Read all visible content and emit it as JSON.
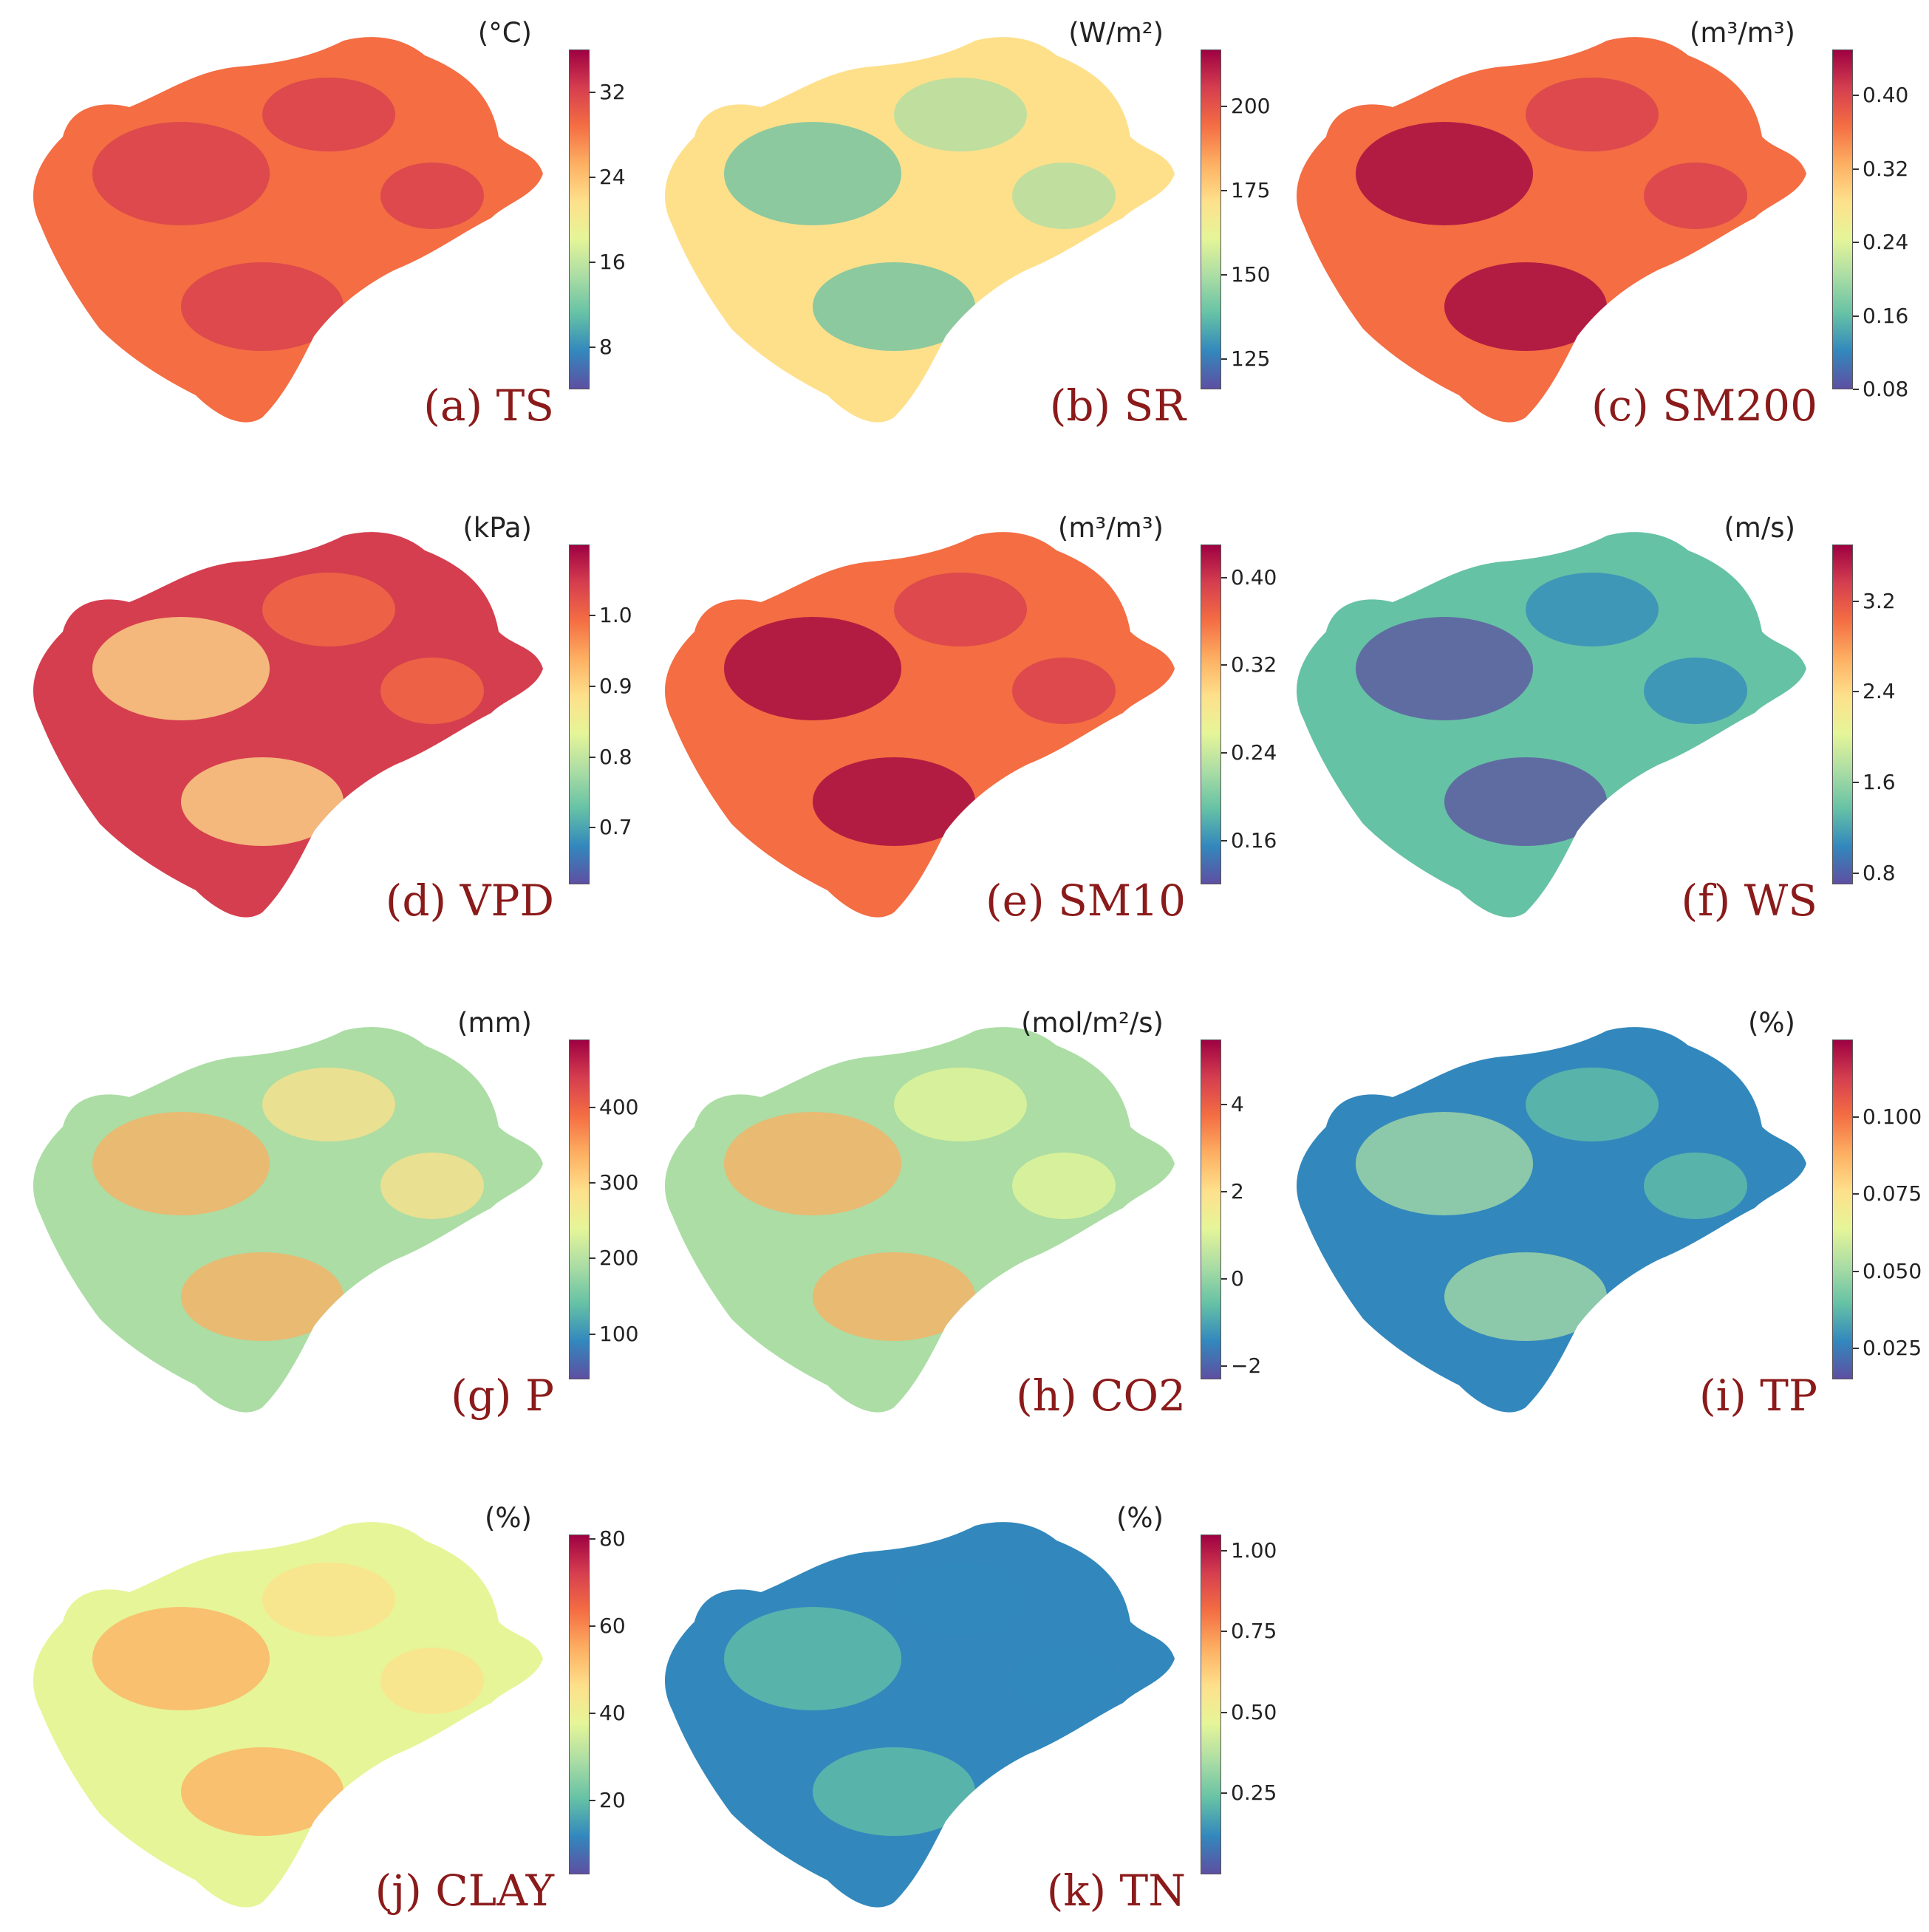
{
  "figure": {
    "colormap": [
      "#5e4fa2",
      "#3288bd",
      "#66c2a5",
      "#abdda4",
      "#e6f598",
      "#fee08b",
      "#fdae61",
      "#f46d43",
      "#d53e4f",
      "#9e0142"
    ],
    "panels": [
      {
        "id": "a",
        "label": "(a) TS",
        "unit": "(°C)",
        "ticks": [
          "8",
          "16",
          "24",
          "32"
        ],
        "tick_values": [
          8,
          16,
          24,
          32
        ],
        "range": [
          4,
          36
        ],
        "fill_level": 0.78,
        "accent_level": 0.92
      },
      {
        "id": "b",
        "label": "(b) SR",
        "unit": "(W/m²)",
        "ticks": [
          "125",
          "150",
          "175",
          "200"
        ],
        "tick_values": [
          125,
          150,
          175,
          200
        ],
        "range": [
          116,
          217
        ],
        "fill_level": 0.5,
        "accent_level": 0.2
      },
      {
        "id": "c",
        "label": "(c) SM200",
        "unit": "(m³/m³)",
        "ticks": [
          "0.08",
          "0.16",
          "0.24",
          "0.32",
          "0.40"
        ],
        "tick_values": [
          0.08,
          0.16,
          0.24,
          0.32,
          0.4
        ],
        "range": [
          0.08,
          0.45
        ],
        "fill_level": 0.8,
        "accent_level": 0.97
      },
      {
        "id": "d",
        "label": "(d) VPD",
        "unit": "(kPa)",
        "ticks": [
          "0.7",
          "0.8",
          "0.9",
          "1.0"
        ],
        "tick_values": [
          0.7,
          0.8,
          0.9,
          1.0
        ],
        "range": [
          0.62,
          1.1
        ],
        "fill_level": 0.9,
        "accent_level": 0.6
      },
      {
        "id": "e",
        "label": "(e) SM10",
        "unit": "(m³/m³)",
        "ticks": [
          "0.16",
          "0.24",
          "0.32",
          "0.40"
        ],
        "tick_values": [
          0.16,
          0.24,
          0.32,
          0.4
        ],
        "range": [
          0.12,
          0.43
        ],
        "fill_level": 0.8,
        "accent_level": 0.97
      },
      {
        "id": "f",
        "label": "(f) WS",
        "unit": "(m/s)",
        "ticks": [
          "0.8",
          "1.6",
          "2.4",
          "3.2"
        ],
        "tick_values": [
          0.8,
          1.6,
          2.4,
          3.2
        ],
        "range": [
          0.7,
          3.7
        ],
        "fill_level": 0.25,
        "accent_level": 0.05
      },
      {
        "id": "g",
        "label": "(g) P",
        "unit": "(mm)",
        "ticks": [
          "100",
          "200",
          "300",
          "400"
        ],
        "tick_values": [
          100,
          200,
          300,
          400
        ],
        "range": [
          40,
          490
        ],
        "fill_level": 0.38,
        "accent_level": 0.62
      },
      {
        "id": "h",
        "label": "(h) CO2",
        "unit": "(mol/m²/s)",
        "ticks": [
          "−2",
          "0",
          "2",
          "4"
        ],
        "tick_values": [
          -2,
          0,
          2,
          4
        ],
        "range": [
          -2.3,
          5.5
        ],
        "fill_level": 0.3,
        "accent_level": 0.65
      },
      {
        "id": "i",
        "label": "(i) TP",
        "unit": "(%)",
        "ticks": [
          "0.025",
          "0.050",
          "0.075",
          "0.100"
        ],
        "tick_values": [
          0.025,
          0.05,
          0.075,
          0.1
        ],
        "range": [
          0.015,
          0.125
        ],
        "fill_level": 0.15,
        "accent_level": 0.3
      },
      {
        "id": "j",
        "label": "(j) CLAY",
        "unit": "(%)",
        "ticks": [
          "20",
          "40",
          "60",
          "80"
        ],
        "tick_values": [
          20,
          40,
          60,
          80
        ],
        "range": [
          3,
          81
        ],
        "fill_level": 0.45,
        "accent_level": 0.65
      },
      {
        "id": "k",
        "label": "(k) TN",
        "unit": "(%)",
        "ticks": [
          "0.25",
          "0.50",
          "0.75",
          "1.00"
        ],
        "tick_values": [
          0.25,
          0.5,
          0.75,
          1.0
        ],
        "range": [
          0.0,
          1.05
        ],
        "fill_level": 0.08,
        "accent_level": 0.2
      }
    ]
  }
}
